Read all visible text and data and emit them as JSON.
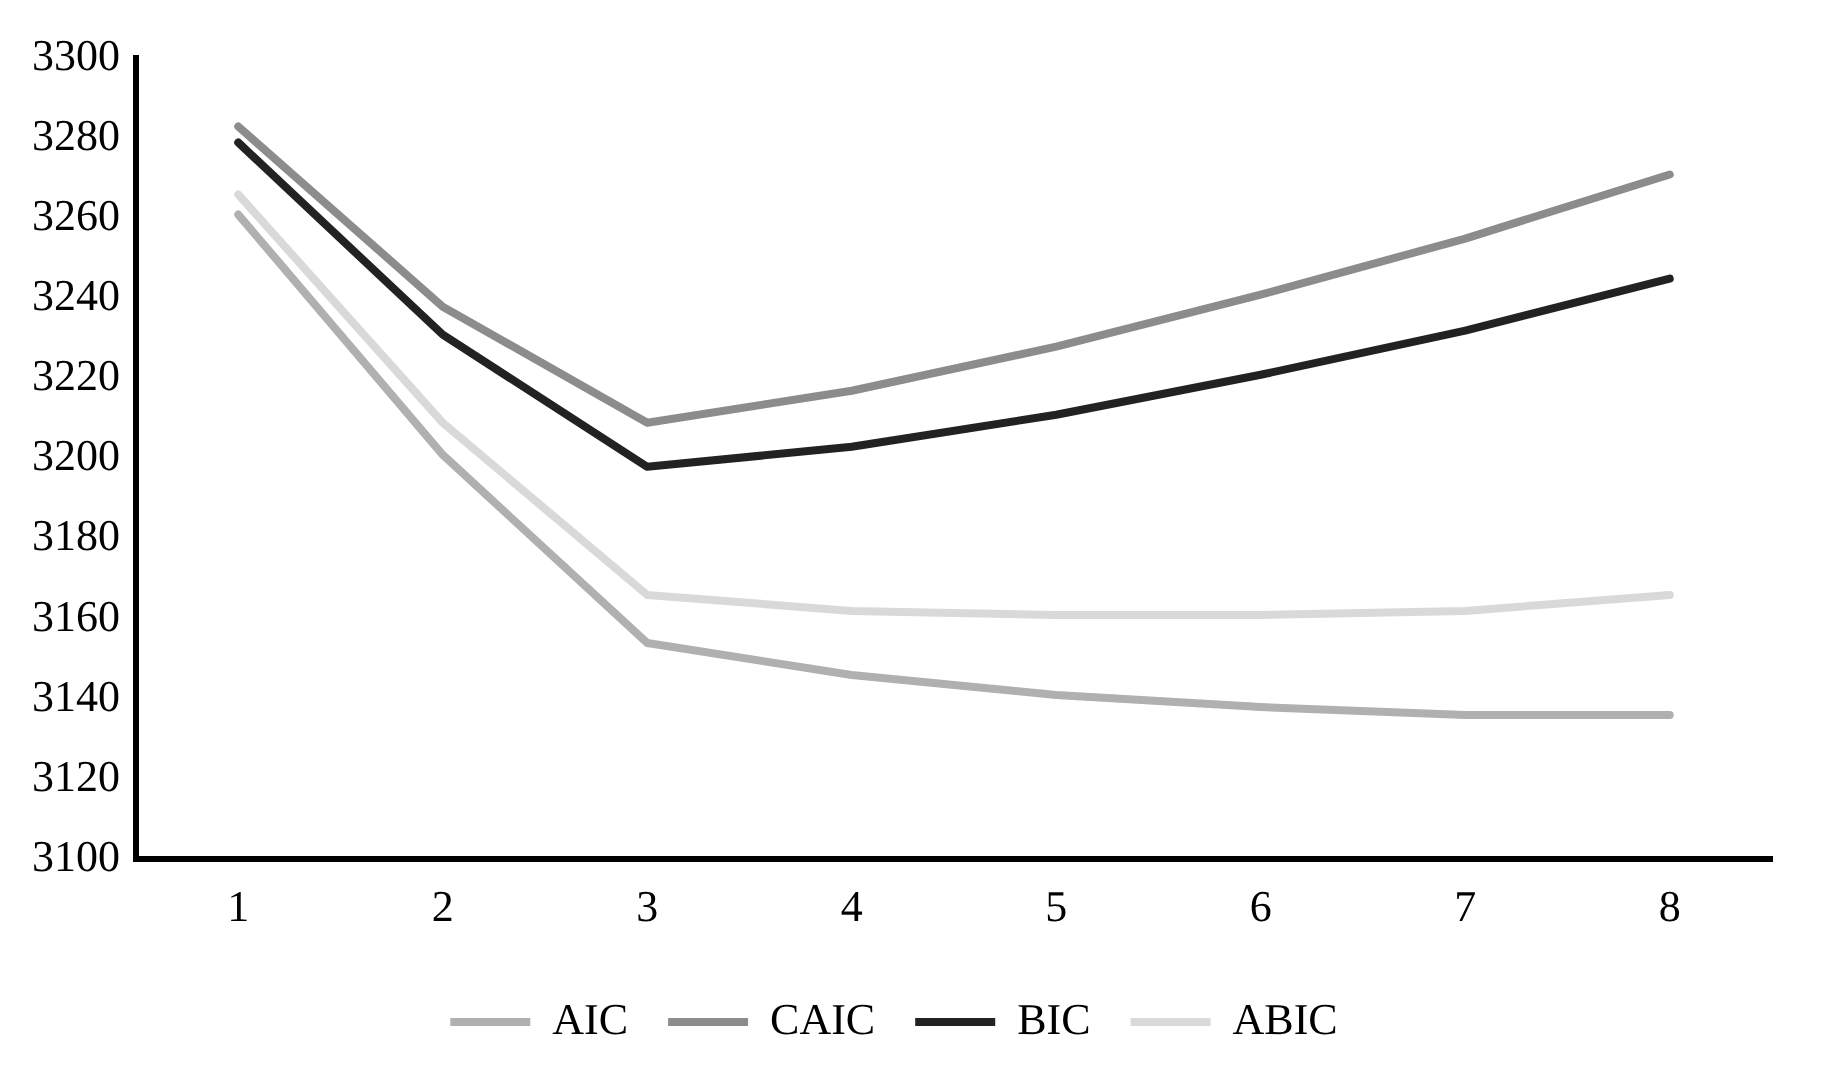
{
  "chart_data": {
    "type": "line",
    "categories": [
      "1",
      "2",
      "3",
      "4",
      "5",
      "6",
      "7",
      "8"
    ],
    "series": [
      {
        "name": "AIC",
        "color": "#b0b0b0",
        "values": [
          3261,
          3201,
          3154,
          3146,
          3141,
          3138,
          3136,
          3136
        ]
      },
      {
        "name": "CAIC",
        "color": "#8c8c8c",
        "values": [
          3283,
          3238,
          3209,
          3217,
          3228,
          3241,
          3255,
          3271
        ]
      },
      {
        "name": "BIC",
        "color": "#222222",
        "values": [
          3279,
          3231,
          3198,
          3203,
          3211,
          3221,
          3232,
          3245
        ]
      },
      {
        "name": "ABIC",
        "color": "#d9d9d9",
        "values": [
          3266,
          3209,
          3166,
          3162,
          3161,
          3161,
          3162,
          3166
        ]
      }
    ],
    "ylim": [
      3100,
      3300
    ],
    "yticks": [
      3100,
      3120,
      3140,
      3160,
      3180,
      3200,
      3220,
      3240,
      3260,
      3280,
      3300
    ],
    "grid": false,
    "legend": "bottom",
    "marker": "none",
    "line_style": "solid"
  }
}
